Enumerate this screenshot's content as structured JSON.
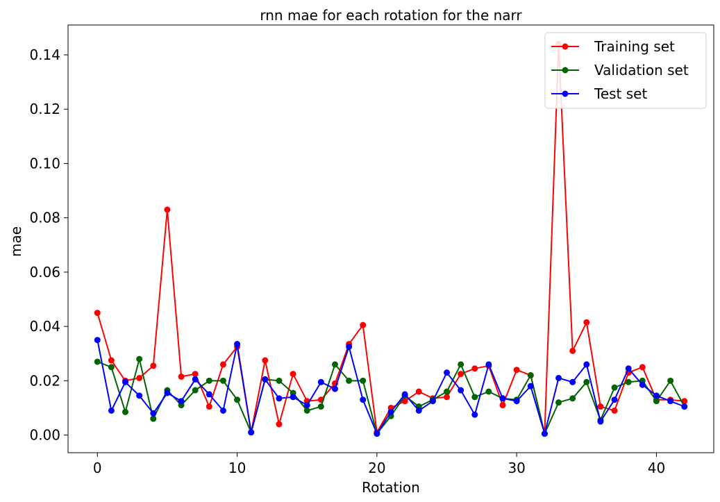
{
  "chart_data": {
    "type": "line",
    "title": "rnn mae for each rotation for the narr",
    "xlabel": "Rotation",
    "ylabel": "mae",
    "xlim": [
      -2.1,
      44.1
    ],
    "ylim": [
      -0.0065,
      0.151
    ],
    "xticks": [
      0,
      10,
      20,
      30,
      40
    ],
    "yticks": [
      0.0,
      0.02,
      0.04,
      0.06,
      0.08,
      0.1,
      0.12,
      0.14
    ],
    "ytick_labels": [
      "0.00",
      "0.02",
      "0.04",
      "0.06",
      "0.08",
      "0.10",
      "0.12",
      "0.14"
    ],
    "xtick_labels": [
      "0",
      "10",
      "20",
      "30",
      "40"
    ],
    "grid": false,
    "legend_position": "top-right",
    "x": [
      0,
      1,
      2,
      3,
      4,
      5,
      6,
      7,
      8,
      9,
      10,
      11,
      12,
      13,
      14,
      15,
      16,
      17,
      18,
      19,
      20,
      21,
      22,
      23,
      24,
      25,
      26,
      27,
      28,
      29,
      30,
      31,
      32,
      33,
      34,
      35,
      36,
      37,
      38,
      39,
      40,
      41,
      42
    ],
    "series": [
      {
        "name": "Training set",
        "color": "#ff0000",
        "values": [
          0.045,
          0.0275,
          0.02,
          0.021,
          0.0255,
          0.083,
          0.0215,
          0.0225,
          0.0105,
          0.026,
          0.0325,
          0.001,
          0.0275,
          0.004,
          0.0225,
          0.0125,
          0.013,
          0.019,
          0.0335,
          0.0405,
          0.001,
          0.01,
          0.0125,
          0.016,
          0.0135,
          0.014,
          0.0225,
          0.0245,
          0.0255,
          0.011,
          0.024,
          0.022,
          0.0005,
          0.144,
          0.031,
          0.0415,
          0.0105,
          0.009,
          0.023,
          0.025,
          0.013,
          0.013,
          0.0125
        ]
      },
      {
        "name": "Validation set",
        "color": "#006400",
        "values": [
          0.027,
          0.025,
          0.0085,
          0.028,
          0.006,
          0.0165,
          0.011,
          0.0165,
          0.02,
          0.02,
          0.013,
          0.001,
          0.0205,
          0.02,
          0.0155,
          0.009,
          0.0105,
          0.026,
          0.02,
          0.02,
          0.0005,
          0.007,
          0.0145,
          0.0105,
          0.013,
          0.016,
          0.026,
          0.014,
          0.016,
          0.0135,
          0.013,
          0.022,
          0.0005,
          0.012,
          0.0135,
          0.0195,
          0.0055,
          0.0175,
          0.0195,
          0.02,
          0.0125,
          0.02,
          0.0105
        ]
      },
      {
        "name": "Test set",
        "color": "#0000ff",
        "values": [
          0.035,
          0.009,
          0.0195,
          0.0145,
          0.008,
          0.0155,
          0.0125,
          0.0205,
          0.015,
          0.009,
          0.0335,
          0.001,
          0.0205,
          0.0135,
          0.014,
          0.011,
          0.0195,
          0.017,
          0.0325,
          0.013,
          0.0005,
          0.0085,
          0.015,
          0.009,
          0.0125,
          0.023,
          0.0165,
          0.0075,
          0.026,
          0.0135,
          0.0125,
          0.018,
          0.0005,
          0.021,
          0.0195,
          0.026,
          0.005,
          0.013,
          0.0245,
          0.0185,
          0.0145,
          0.0125,
          0.0105
        ]
      }
    ]
  }
}
